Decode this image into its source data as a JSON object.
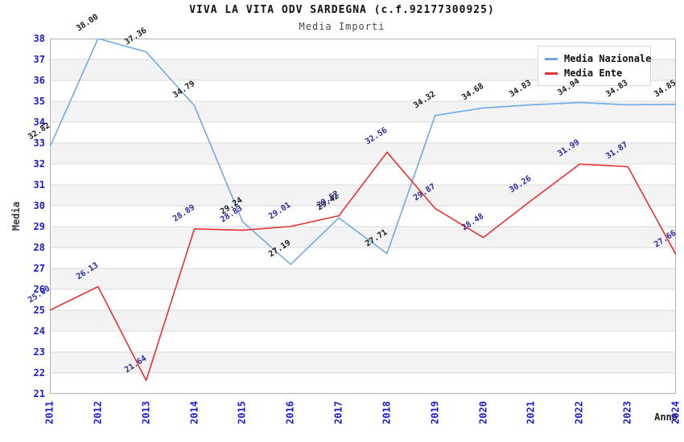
{
  "chart_data": {
    "type": "line",
    "title": "VIVA LA VITA ODV SARDEGNA (c.f.92177300925)",
    "subtitle": "Media Importi",
    "xlabel": "Anno",
    "ylabel": "Media",
    "categories": [
      "2011",
      "2012",
      "2013",
      "2014",
      "2015",
      "2016",
      "2017",
      "2018",
      "2019",
      "2020",
      "2021",
      "2022",
      "2023",
      "2024"
    ],
    "series": [
      {
        "name": "Media Nazionale",
        "color": "#6fabe8",
        "label_color": "#1a1a1a",
        "values": [
          32.82,
          38.0,
          37.36,
          34.79,
          29.24,
          27.19,
          29.42,
          27.71,
          34.32,
          34.68,
          34.83,
          34.94,
          34.83,
          34.85
        ]
      },
      {
        "name": "Media Ente",
        "color": "#e63232",
        "label_color": "#2929a3",
        "values": [
          25.0,
          26.13,
          21.64,
          28.89,
          28.83,
          29.01,
          29.52,
          32.56,
          29.87,
          28.48,
          30.26,
          31.99,
          31.87,
          27.66
        ]
      }
    ],
    "ylim": [
      21,
      38
    ],
    "ytick_step": 1,
    "value_label_format": "0.00",
    "grid": "horizontal",
    "band_colors": [
      "#ffffff",
      "#f3f3f3"
    ],
    "gridline_color": "#d8d8d8",
    "border_color": "#b3b3b3",
    "tick_label_color": "#1b1bd1",
    "legend_position": "top-right"
  }
}
